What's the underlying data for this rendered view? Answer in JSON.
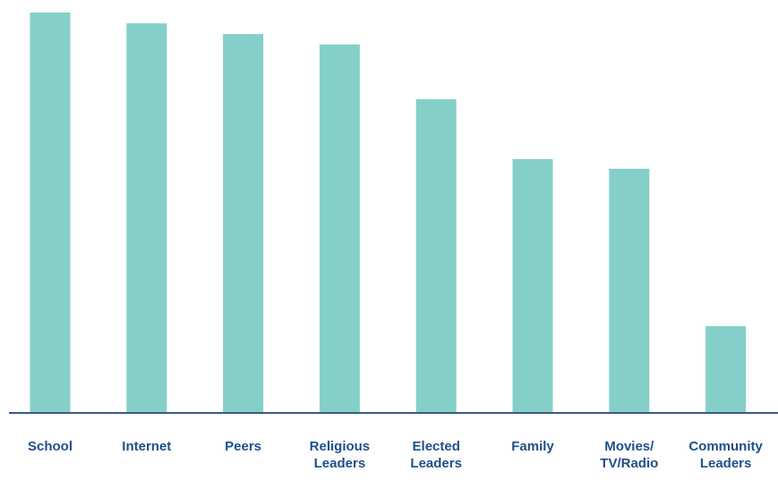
{
  "chart_data": {
    "type": "bar",
    "title": "",
    "xlabel": "",
    "ylabel": "",
    "categories": [
      [
        "School"
      ],
      [
        "Internet"
      ],
      [
        "Peers"
      ],
      [
        "Religious",
        "Leaders"
      ],
      [
        "Elected",
        "Leaders"
      ],
      [
        "Family"
      ],
      [
        "Movies/",
        "TV/Radio"
      ],
      [
        "Community",
        "Leaders"
      ]
    ],
    "values": [
      100,
      97.3,
      94.6,
      92.0,
      78.3,
      63.3,
      60.9,
      21.5
    ],
    "ylim": [
      0,
      100
    ],
    "grid": false,
    "legend": "none",
    "colors": {
      "bar": "#84d0c8",
      "axis": "#3a5a8c",
      "label": "#1f4e8c"
    }
  }
}
